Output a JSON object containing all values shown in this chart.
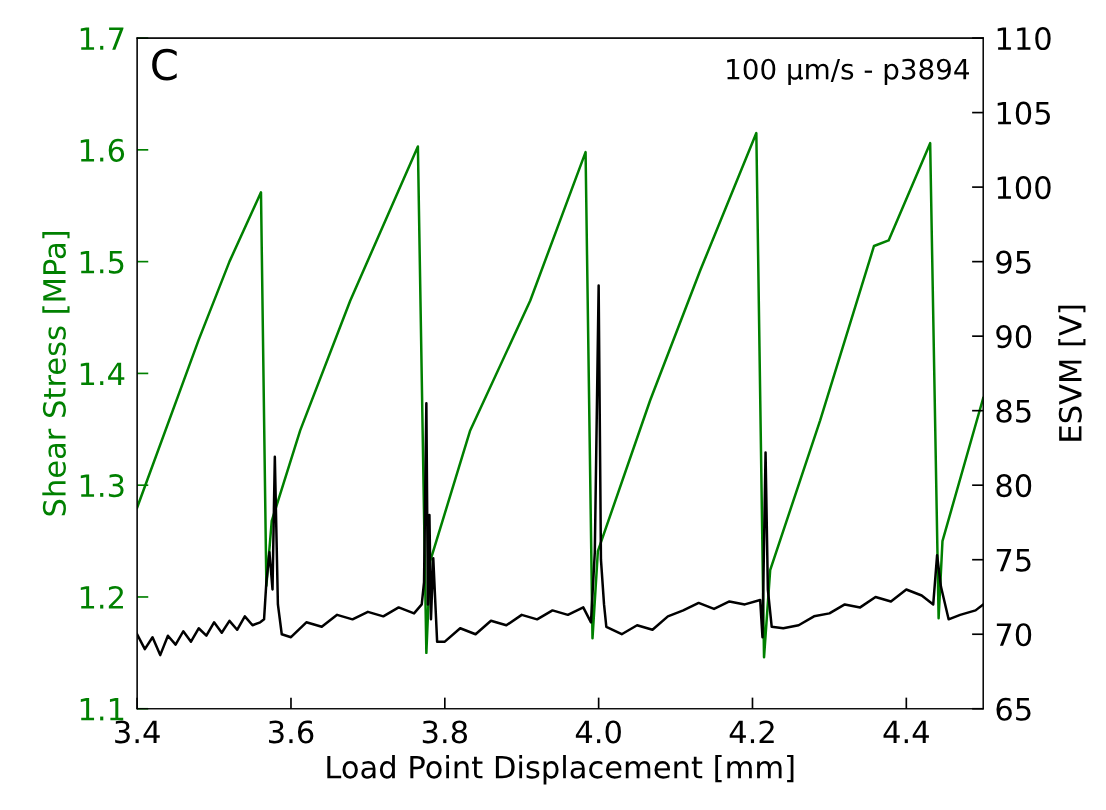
{
  "chart_data": {
    "type": "line",
    "xlabel": "Load Point Displacement [mm]",
    "ylabel": "Shear Stress [MPa]",
    "y2label": "ESVM [V]",
    "xlim": [
      3.4,
      4.5
    ],
    "xticks": [
      {
        "value": 3.4,
        "label": "3.4"
      },
      {
        "value": 3.6,
        "label": "3.6"
      },
      {
        "value": 3.8,
        "label": "3.8"
      },
      {
        "value": 4.0,
        "label": "4.0"
      },
      {
        "value": 4.2,
        "label": "4.2"
      },
      {
        "value": 4.4,
        "label": "4.4"
      }
    ],
    "ylim": [
      1.1,
      1.7
    ],
    "yticks": [
      1.1,
      1.2,
      1.3,
      1.4,
      1.5,
      1.6,
      1.7
    ],
    "y2lim": [
      65,
      110
    ],
    "y2ticks": [
      65,
      70,
      75,
      80,
      85,
      90,
      95,
      100,
      105,
      110
    ],
    "grid": false,
    "legend": false,
    "annotations": [
      "C",
      "100 μm/s - p3894"
    ],
    "series": [
      {
        "color": "#008000",
        "x": [
          3.4,
          3.48,
          3.52,
          3.561,
          3.568,
          3.575,
          3.612,
          3.677,
          3.765,
          3.776,
          3.781,
          3.833,
          3.911,
          3.983,
          3.992,
          3.999,
          4.067,
          4.132,
          4.205,
          4.215,
          4.223,
          4.288,
          4.358,
          4.377,
          4.431,
          4.442,
          4.447,
          4.5
        ],
        "values": [
          1.28,
          1.43,
          1.5,
          1.562,
          1.21,
          1.268,
          1.349,
          1.465,
          1.603,
          1.15,
          1.232,
          1.349,
          1.465,
          1.598,
          1.163,
          1.241,
          1.376,
          1.492,
          1.615,
          1.146,
          1.224,
          1.358,
          1.514,
          1.519,
          1.606,
          1.181,
          1.25,
          1.378
        ]
      },
      {
        "color": "#000000",
        "axis": "y2",
        "x": [
          3.4,
          3.41,
          3.42,
          3.43,
          3.44,
          3.45,
          3.46,
          3.47,
          3.48,
          3.49,
          3.5,
          3.51,
          3.52,
          3.53,
          3.54,
          3.55,
          3.56,
          3.565,
          3.568,
          3.572,
          3.576,
          3.579,
          3.583,
          3.588,
          3.6,
          3.62,
          3.64,
          3.66,
          3.68,
          3.7,
          3.72,
          3.74,
          3.76,
          3.77,
          3.773,
          3.776,
          3.778,
          3.78,
          3.782,
          3.785,
          3.79,
          3.8,
          3.82,
          3.84,
          3.86,
          3.88,
          3.9,
          3.92,
          3.94,
          3.96,
          3.98,
          3.99,
          3.995,
          4.0,
          4.003,
          4.007,
          4.01,
          4.03,
          4.05,
          4.07,
          4.09,
          4.11,
          4.13,
          4.15,
          4.17,
          4.19,
          4.21,
          4.213,
          4.217,
          4.22,
          4.225,
          4.24,
          4.26,
          4.28,
          4.3,
          4.32,
          4.34,
          4.36,
          4.38,
          4.4,
          4.42,
          4.435,
          4.44,
          4.445,
          4.455,
          4.47,
          4.49,
          4.5
        ],
        "values": [
          70.0,
          69.0,
          69.8,
          68.6,
          69.9,
          69.3,
          70.2,
          69.5,
          70.4,
          69.9,
          70.8,
          70.1,
          70.9,
          70.3,
          71.2,
          70.6,
          70.8,
          71.0,
          73.5,
          75.5,
          73.0,
          81.9,
          72.0,
          70.0,
          69.8,
          70.8,
          70.5,
          71.3,
          71.0,
          71.5,
          71.2,
          71.8,
          71.4,
          72.0,
          73.5,
          85.5,
          72.0,
          78.0,
          71.0,
          75.1,
          69.5,
          69.5,
          70.4,
          70.0,
          70.9,
          70.6,
          71.3,
          71.0,
          71.6,
          71.3,
          71.8,
          70.8,
          75.5,
          93.4,
          75.0,
          72.0,
          70.5,
          70.0,
          70.6,
          70.3,
          71.2,
          71.6,
          72.1,
          71.7,
          72.2,
          72.0,
          72.3,
          69.8,
          82.2,
          73.0,
          70.5,
          70.4,
          70.6,
          71.2,
          71.4,
          72.0,
          71.8,
          72.5,
          72.2,
          73.0,
          72.6,
          72.0,
          75.3,
          73.2,
          71.0,
          71.3,
          71.6,
          72.0
        ]
      }
    ]
  }
}
